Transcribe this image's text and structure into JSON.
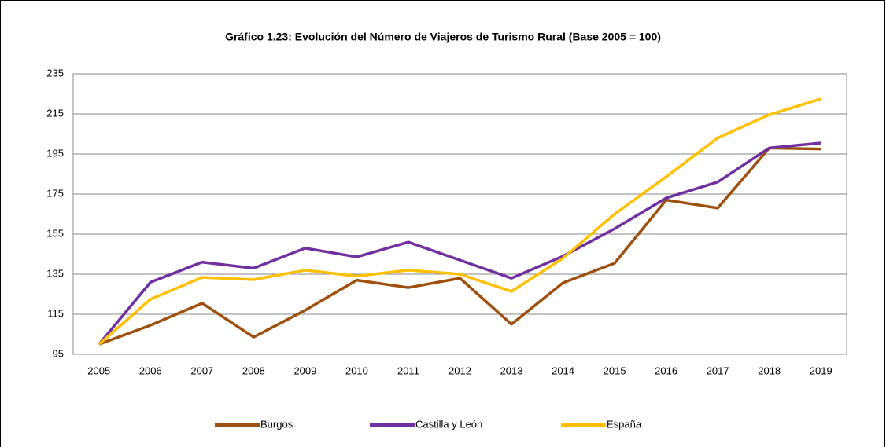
{
  "chart_data": {
    "type": "line",
    "title": "Gráfico 1.23: Evolución del Número de Viajeros de Turismo Rural (Base 2005 = 100)",
    "categories": [
      "2005",
      "2006",
      "2007",
      "2008",
      "2009",
      "2010",
      "2011",
      "2012",
      "2013",
      "2014",
      "2015",
      "2016",
      "2017",
      "2018",
      "2019"
    ],
    "series": [
      {
        "name": "Burgos",
        "color": "#9e500f",
        "values": [
          100,
          109.5,
          120.5,
          103.6,
          117,
          132,
          128.3,
          133,
          110,
          130.7,
          140.5,
          172,
          168,
          198,
          197.5
        ]
      },
      {
        "name": "Castilla y León",
        "color": "#7030a0",
        "values": [
          100,
          131,
          141,
          138,
          148,
          143.6,
          151,
          142,
          133,
          144,
          157.7,
          173,
          181,
          198,
          200.5
        ]
      },
      {
        "name": "España",
        "color": "#ffc000",
        "values": [
          100,
          122.5,
          133.4,
          132.3,
          137,
          134,
          137,
          135,
          126.4,
          143,
          165,
          183.6,
          203,
          214.6,
          222.5
        ]
      }
    ],
    "ylim": [
      95,
      235
    ],
    "yticks": [
      95,
      115,
      135,
      155,
      175,
      195,
      215,
      235
    ],
    "grid": true,
    "legend": "bottom"
  }
}
